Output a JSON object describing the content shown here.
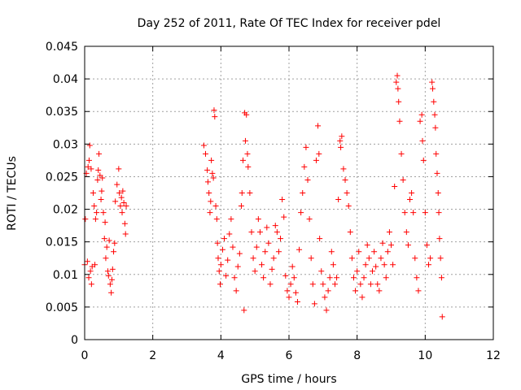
{
  "chart_data": {
    "type": "scatter",
    "title": "Day 252 of 2011, Rate Of TEC Index for receiver pdel",
    "xlabel": "GPS time / hours",
    "ylabel": "ROTI / TECUs",
    "xlim": [
      0,
      12
    ],
    "ylim": [
      0,
      0.045
    ],
    "xticks": [
      0,
      2,
      4,
      6,
      8,
      10,
      12
    ],
    "yticks": [
      0,
      0.005,
      0.01,
      0.015,
      0.02,
      0.025,
      0.03,
      0.035,
      0.04,
      0.045
    ],
    "xtick_labels": [
      "0",
      "2",
      "4",
      "6",
      "8",
      "10",
      "12"
    ],
    "ytick_labels": [
      "0",
      "0.005",
      "0.01",
      "0.015",
      "0.02",
      "0.025",
      "0.03",
      "0.035",
      "0.04",
      "0.045"
    ],
    "grid": true,
    "marker": "+",
    "color": "#ff0000",
    "series": [
      {
        "name": "ROTI",
        "points": [
          [
            0.0,
            0.0115
          ],
          [
            0.02,
            0.0185
          ],
          [
            0.05,
            0.0255
          ],
          [
            0.08,
            0.012
          ],
          [
            0.1,
            0.0265
          ],
          [
            0.12,
            0.0095
          ],
          [
            0.13,
            0.0275
          ],
          [
            0.15,
            0.0298
          ],
          [
            0.17,
            0.0105
          ],
          [
            0.19,
            0.0262
          ],
          [
            0.2,
            0.0085
          ],
          [
            0.22,
            0.0112
          ],
          [
            0.25,
            0.0225
          ],
          [
            0.28,
            0.0205
          ],
          [
            0.3,
            0.0115
          ],
          [
            0.32,
            0.0185
          ],
          [
            0.35,
            0.0195
          ],
          [
            0.38,
            0.0245
          ],
          [
            0.4,
            0.026
          ],
          [
            0.42,
            0.0285
          ],
          [
            0.45,
            0.0252
          ],
          [
            0.48,
            0.0215
          ],
          [
            0.5,
            0.0228
          ],
          [
            0.52,
            0.0248
          ],
          [
            0.55,
            0.0195
          ],
          [
            0.58,
            0.0155
          ],
          [
            0.6,
            0.018
          ],
          [
            0.62,
            0.0125
          ],
          [
            0.65,
            0.0142
          ],
          [
            0.68,
            0.0105
          ],
          [
            0.7,
            0.0098
          ],
          [
            0.72,
            0.0152
          ],
          [
            0.75,
            0.0085
          ],
          [
            0.78,
            0.0072
          ],
          [
            0.8,
            0.0092
          ],
          [
            0.82,
            0.0108
          ],
          [
            0.85,
            0.0135
          ],
          [
            0.88,
            0.0148
          ],
          [
            0.9,
            0.0212
          ],
          [
            0.95,
            0.0238
          ],
          [
            1.0,
            0.0262
          ],
          [
            1.02,
            0.0225
          ],
          [
            1.05,
            0.0205
          ],
          [
            1.08,
            0.0218
          ],
          [
            1.1,
            0.0195
          ],
          [
            1.12,
            0.0228
          ],
          [
            1.15,
            0.021
          ],
          [
            1.18,
            0.0178
          ],
          [
            1.2,
            0.0162
          ],
          [
            1.22,
            0.0205
          ],
          [
            3.5,
            0.0298
          ],
          [
            3.55,
            0.0285
          ],
          [
            3.6,
            0.026
          ],
          [
            3.62,
            0.0242
          ],
          [
            3.65,
            0.0225
          ],
          [
            3.68,
            0.0195
          ],
          [
            3.7,
            0.0212
          ],
          [
            3.72,
            0.0275
          ],
          [
            3.75,
            0.0255
          ],
          [
            3.78,
            0.0248
          ],
          [
            3.8,
            0.0352
          ],
          [
            3.82,
            0.0342
          ],
          [
            3.85,
            0.0205
          ],
          [
            3.88,
            0.0185
          ],
          [
            3.9,
            0.0148
          ],
          [
            3.92,
            0.0125
          ],
          [
            3.95,
            0.0105
          ],
          [
            3.98,
            0.0085
          ],
          [
            4.0,
            0.0115
          ],
          [
            4.05,
            0.0138
          ],
          [
            4.1,
            0.0155
          ],
          [
            4.15,
            0.0098
          ],
          [
            4.2,
            0.0122
          ],
          [
            4.25,
            0.0162
          ],
          [
            4.3,
            0.0185
          ],
          [
            4.35,
            0.0142
          ],
          [
            4.4,
            0.0095
          ],
          [
            4.45,
            0.0075
          ],
          [
            4.5,
            0.0112
          ],
          [
            4.55,
            0.0132
          ],
          [
            4.6,
            0.0205
          ],
          [
            4.62,
            0.0225
          ],
          [
            4.65,
            0.0275
          ],
          [
            4.68,
            0.0045
          ],
          [
            4.7,
            0.0348
          ],
          [
            4.72,
            0.0305
          ],
          [
            4.75,
            0.0345
          ],
          [
            4.78,
            0.0285
          ],
          [
            4.8,
            0.0265
          ],
          [
            4.85,
            0.0225
          ],
          [
            4.9,
            0.0165
          ],
          [
            4.95,
            0.0125
          ],
          [
            5.0,
            0.0105
          ],
          [
            5.05,
            0.0142
          ],
          [
            5.1,
            0.0185
          ],
          [
            5.15,
            0.0165
          ],
          [
            5.2,
            0.0115
          ],
          [
            5.25,
            0.0095
          ],
          [
            5.3,
            0.0135
          ],
          [
            5.35,
            0.0172
          ],
          [
            5.4,
            0.0148
          ],
          [
            5.45,
            0.0085
          ],
          [
            5.5,
            0.0108
          ],
          [
            5.55,
            0.0125
          ],
          [
            5.6,
            0.0175
          ],
          [
            5.65,
            0.0165
          ],
          [
            5.7,
            0.0135
          ],
          [
            5.75,
            0.0155
          ],
          [
            5.8,
            0.0215
          ],
          [
            5.85,
            0.0188
          ],
          [
            5.9,
            0.0098
          ],
          [
            5.95,
            0.0075
          ],
          [
            6.0,
            0.0065
          ],
          [
            6.05,
            0.0085
          ],
          [
            6.1,
            0.0112
          ],
          [
            6.15,
            0.0095
          ],
          [
            6.2,
            0.0072
          ],
          [
            6.25,
            0.0058
          ],
          [
            6.3,
            0.0138
          ],
          [
            6.35,
            0.0195
          ],
          [
            6.4,
            0.0225
          ],
          [
            6.45,
            0.0265
          ],
          [
            6.5,
            0.0295
          ],
          [
            6.55,
            0.0245
          ],
          [
            6.6,
            0.0185
          ],
          [
            6.65,
            0.0125
          ],
          [
            6.7,
            0.0085
          ],
          [
            6.75,
            0.0055
          ],
          [
            6.8,
            0.0275
          ],
          [
            6.85,
            0.0328
          ],
          [
            6.88,
            0.0285
          ],
          [
            6.9,
            0.0155
          ],
          [
            6.95,
            0.0105
          ],
          [
            7.0,
            0.0085
          ],
          [
            7.05,
            0.0065
          ],
          [
            7.1,
            0.0045
          ],
          [
            7.15,
            0.0075
          ],
          [
            7.2,
            0.0095
          ],
          [
            7.25,
            0.0135
          ],
          [
            7.3,
            0.0115
          ],
          [
            7.35,
            0.0085
          ],
          [
            7.4,
            0.0095
          ],
          [
            7.45,
            0.0215
          ],
          [
            7.5,
            0.0305
          ],
          [
            7.52,
            0.0295
          ],
          [
            7.55,
            0.0312
          ],
          [
            7.6,
            0.0262
          ],
          [
            7.65,
            0.0245
          ],
          [
            7.7,
            0.0225
          ],
          [
            7.75,
            0.0205
          ],
          [
            7.8,
            0.0165
          ],
          [
            7.85,
            0.0125
          ],
          [
            7.9,
            0.0095
          ],
          [
            7.95,
            0.0075
          ],
          [
            8.0,
            0.0105
          ],
          [
            8.05,
            0.0135
          ],
          [
            8.1,
            0.0085
          ],
          [
            8.15,
            0.0065
          ],
          [
            8.2,
            0.0095
          ],
          [
            8.25,
            0.0115
          ],
          [
            8.3,
            0.0145
          ],
          [
            8.35,
            0.0125
          ],
          [
            8.4,
            0.0085
          ],
          [
            8.45,
            0.0105
          ],
          [
            8.5,
            0.0135
          ],
          [
            8.55,
            0.0112
          ],
          [
            8.6,
            0.0085
          ],
          [
            8.65,
            0.0075
          ],
          [
            8.7,
            0.0125
          ],
          [
            8.75,
            0.0148
          ],
          [
            8.8,
            0.0115
          ],
          [
            8.85,
            0.0095
          ],
          [
            8.9,
            0.0135
          ],
          [
            8.95,
            0.0165
          ],
          [
            9.0,
            0.0145
          ],
          [
            9.05,
            0.0115
          ],
          [
            9.1,
            0.0235
          ],
          [
            9.15,
            0.0395
          ],
          [
            9.18,
            0.0405
          ],
          [
            9.2,
            0.0385
          ],
          [
            9.22,
            0.0365
          ],
          [
            9.25,
            0.0335
          ],
          [
            9.3,
            0.0285
          ],
          [
            9.35,
            0.0245
          ],
          [
            9.4,
            0.0195
          ],
          [
            9.45,
            0.0165
          ],
          [
            9.5,
            0.0145
          ],
          [
            9.55,
            0.0215
          ],
          [
            9.6,
            0.0225
          ],
          [
            9.65,
            0.0195
          ],
          [
            9.7,
            0.0125
          ],
          [
            9.75,
            0.0095
          ],
          [
            9.8,
            0.0075
          ],
          [
            9.85,
            0.0335
          ],
          [
            9.9,
            0.0345
          ],
          [
            9.92,
            0.0305
          ],
          [
            9.95,
            0.0275
          ],
          [
            10.0,
            0.0195
          ],
          [
            10.05,
            0.0145
          ],
          [
            10.1,
            0.0115
          ],
          [
            10.15,
            0.0125
          ],
          [
            10.2,
            0.0395
          ],
          [
            10.22,
            0.0385
          ],
          [
            10.25,
            0.0365
          ],
          [
            10.28,
            0.0345
          ],
          [
            10.3,
            0.0325
          ],
          [
            10.32,
            0.0285
          ],
          [
            10.35,
            0.0255
          ],
          [
            10.38,
            0.0225
          ],
          [
            10.4,
            0.0195
          ],
          [
            10.42,
            0.0155
          ],
          [
            10.45,
            0.0125
          ],
          [
            10.48,
            0.0095
          ],
          [
            10.5,
            0.0035
          ]
        ]
      }
    ]
  }
}
